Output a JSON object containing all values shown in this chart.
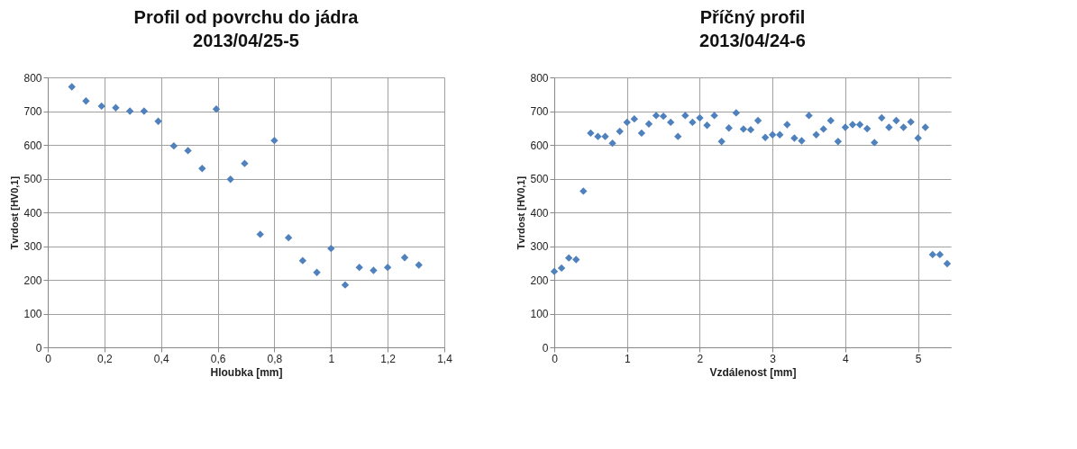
{
  "chart_data": [
    {
      "type": "scatter",
      "title": "Profil od povrchu do jádra",
      "subtitle": "2013/04/25-5",
      "xlabel": "Hloubka [mm]",
      "ylabel": "Tvrdost [HV0,1]",
      "marker": "diamond",
      "grid": true,
      "xlim": [
        0,
        1.4
      ],
      "xticks": [
        0,
        {
          "value": 0.2,
          "label": "0,2"
        },
        {
          "value": 0.4,
          "label": "0,4"
        },
        {
          "value": 0.6,
          "label": "0,6"
        },
        {
          "value": 0.8,
          "label": "0,8"
        },
        1,
        {
          "value": 1.2,
          "label": "1,2"
        },
        {
          "value": 1.4,
          "label": "1,4"
        }
      ],
      "ylim": [
        0,
        800
      ],
      "yticks": [
        0,
        100,
        200,
        300,
        400,
        500,
        600,
        700,
        800
      ],
      "series": [
        {
          "color": "#4f81bd",
          "x": [
            0.085,
            0.135,
            0.19,
            0.24,
            0.29,
            0.34,
            0.39,
            0.445,
            0.495,
            0.545,
            0.595,
            0.645,
            0.695,
            0.75,
            0.8,
            0.85,
            0.9,
            0.95,
            1.0,
            1.05,
            1.1,
            1.15,
            1.2,
            1.26,
            1.31
          ],
          "values": [
            772,
            730,
            715,
            710,
            700,
            700,
            670,
            597,
            583,
            530,
            706,
            498,
            545,
            335,
            613,
            325,
            257,
            222,
            293,
            185,
            237,
            228,
            237,
            266,
            244
          ]
        }
      ]
    },
    {
      "type": "scatter",
      "title": "Příčný profil",
      "subtitle": "2013/04/24-6",
      "xlabel": "Vzdálenost [mm]",
      "ylabel": "Tvrdost [HV0,1]",
      "marker": "diamond",
      "grid": true,
      "xlim": [
        0,
        5.45
      ],
      "xticks": [
        0,
        1,
        2,
        3,
        4,
        5
      ],
      "ylim": [
        0,
        800
      ],
      "yticks": [
        0,
        100,
        200,
        300,
        400,
        500,
        600,
        700,
        800
      ],
      "series": [
        {
          "color": "#4f81bd",
          "x": [
            0,
            0.1,
            0.2,
            0.3,
            0.4,
            0.5,
            0.6,
            0.7,
            0.8,
            0.9,
            1.0,
            1.1,
            1.2,
            1.3,
            1.4,
            1.5,
            1.6,
            1.7,
            1.8,
            1.9,
            2.0,
            2.1,
            2.2,
            2.3,
            2.4,
            2.5,
            2.6,
            2.7,
            2.8,
            2.9,
            3.0,
            3.1,
            3.2,
            3.3,
            3.4,
            3.5,
            3.6,
            3.7,
            3.8,
            3.9,
            4.0,
            4.1,
            4.2,
            4.3,
            4.4,
            4.5,
            4.6,
            4.7,
            4.8,
            4.9,
            5.0,
            5.1,
            5.2,
            5.3,
            5.4
          ],
          "values": [
            225,
            235,
            265,
            260,
            463,
            635,
            625,
            625,
            605,
            640,
            667,
            677,
            635,
            662,
            687,
            685,
            667,
            625,
            687,
            667,
            680,
            658,
            687,
            610,
            650,
            695,
            647,
            645,
            672,
            622,
            630,
            630,
            660,
            620,
            612,
            687,
            630,
            647,
            672,
            610,
            652,
            660,
            660,
            648,
            607,
            680,
            652,
            672,
            652,
            668,
            620,
            652,
            275,
            275,
            248
          ]
        }
      ]
    }
  ]
}
